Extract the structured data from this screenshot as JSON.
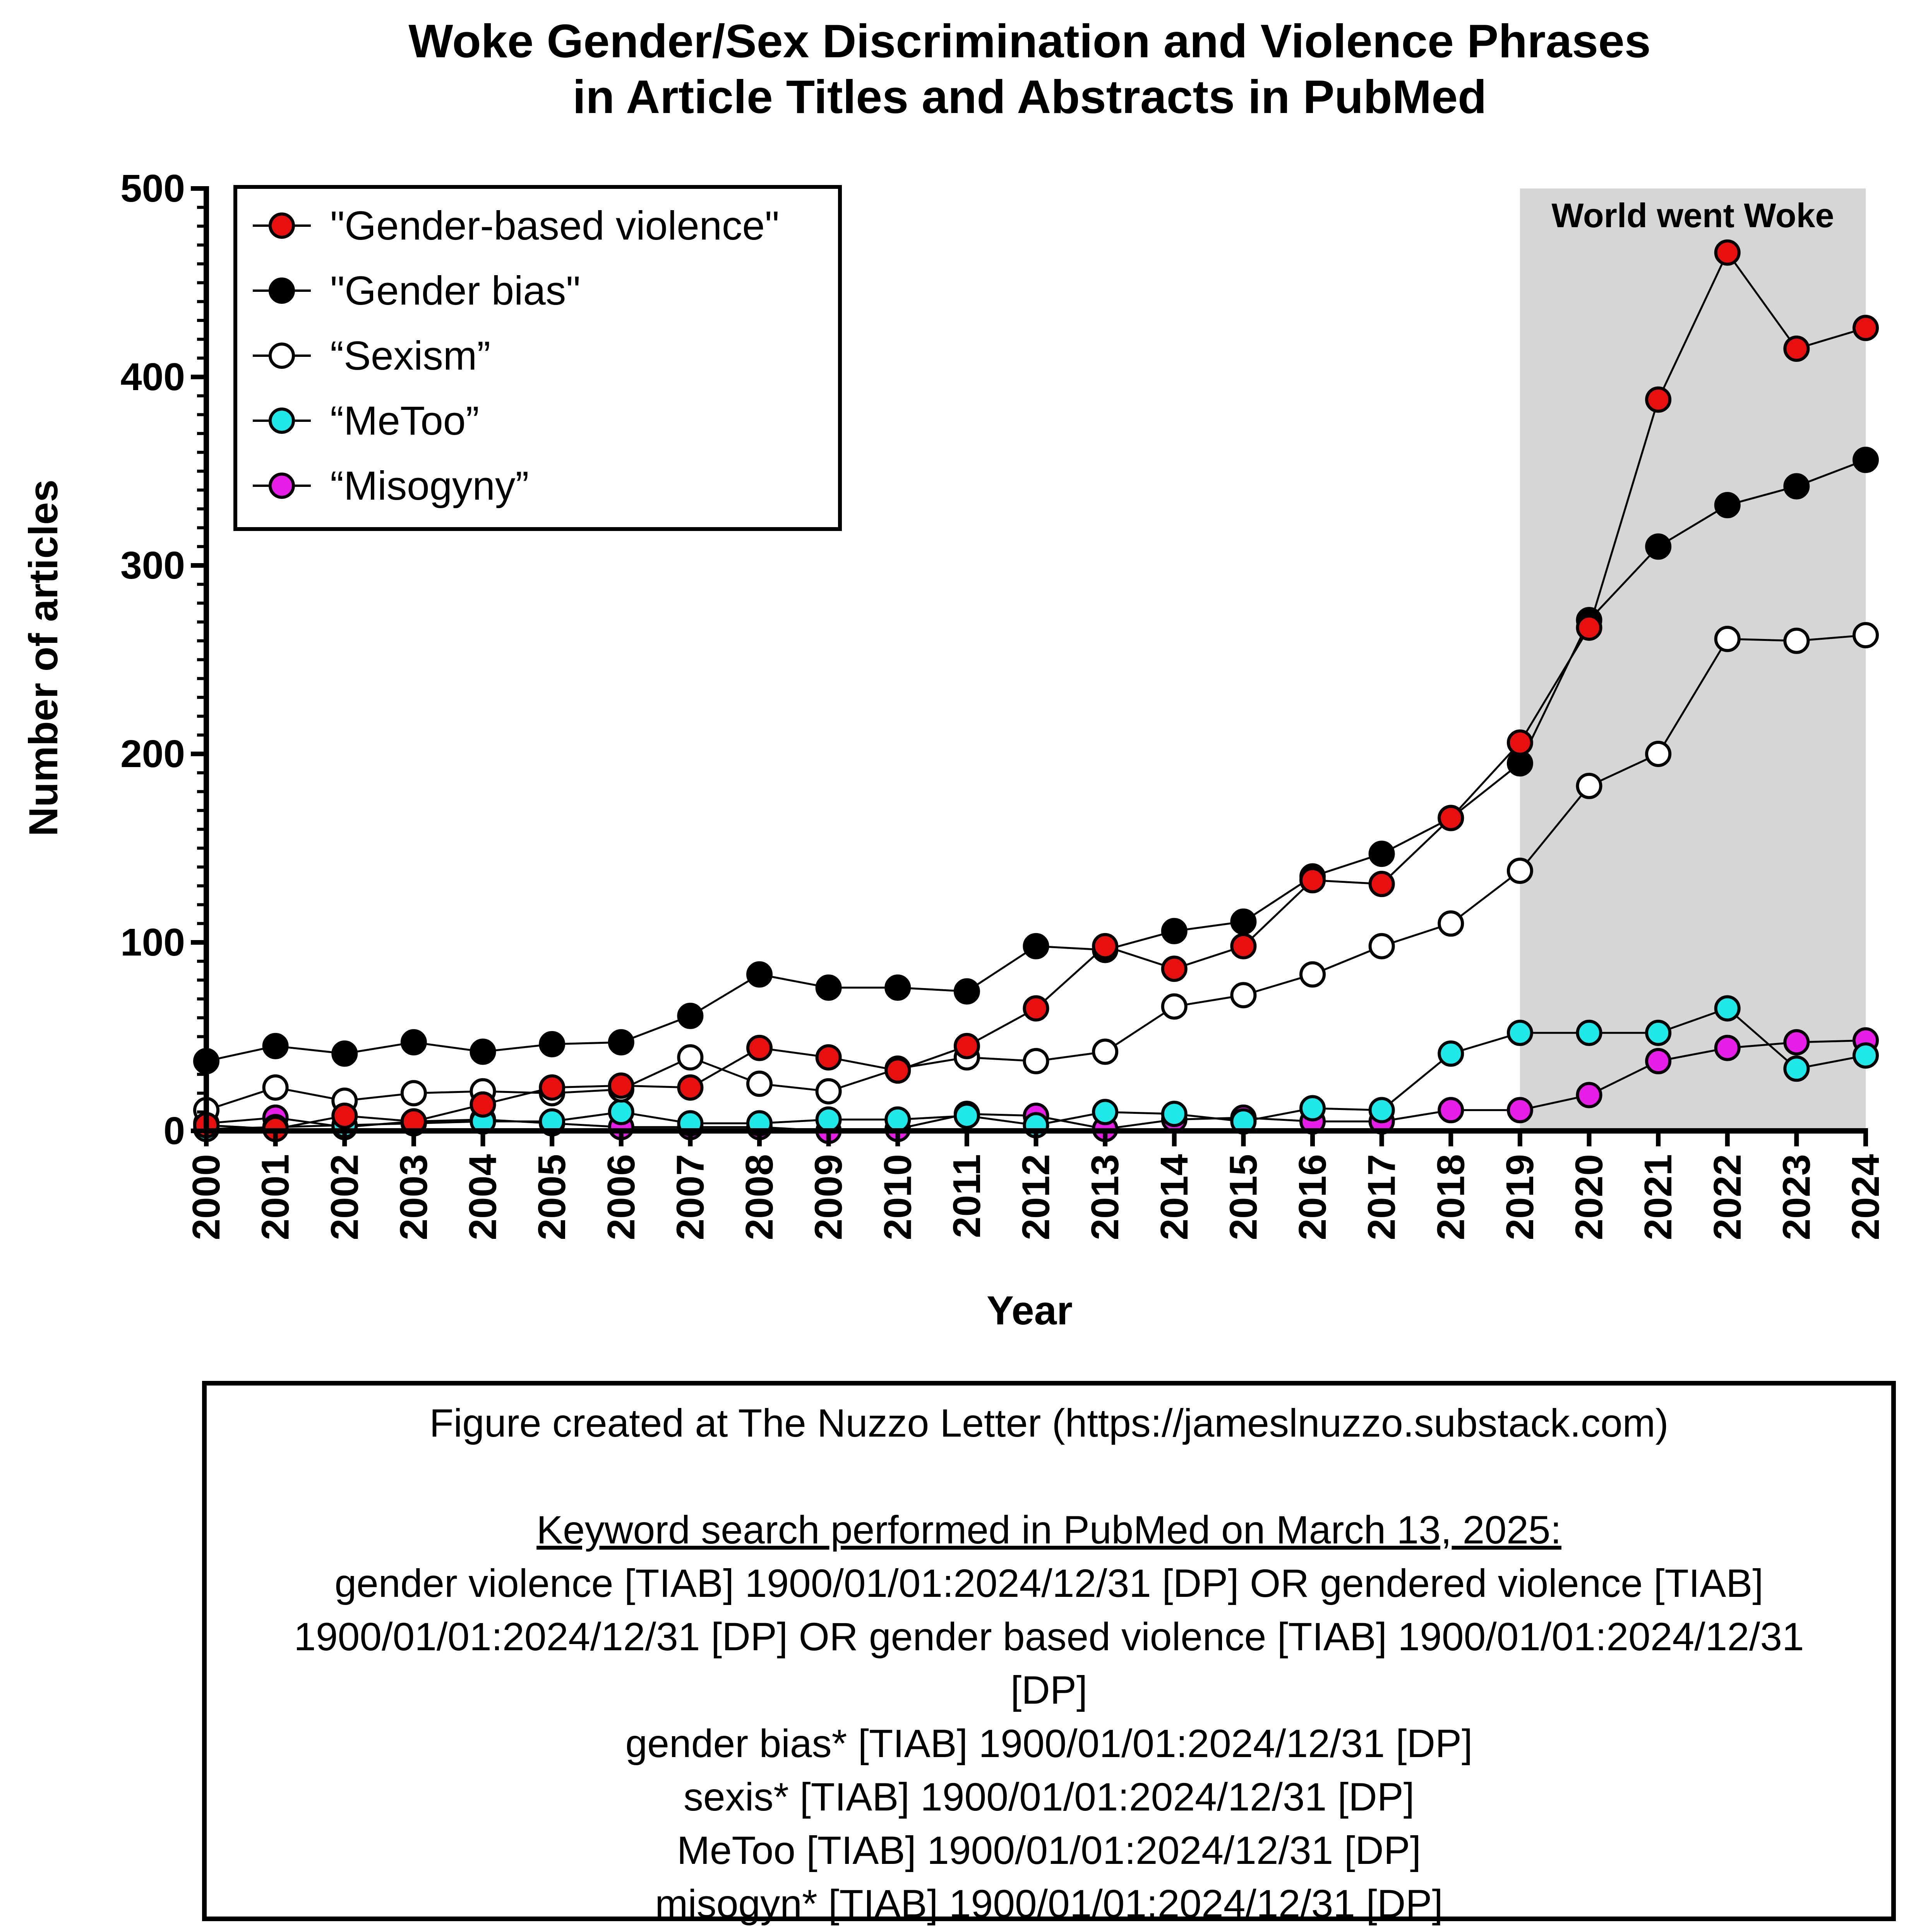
{
  "chart_data": {
    "type": "line",
    "title": [
      "Woke Gender/Sex Discrimination and Violence Phrases",
      "in Article Titles and Abstracts in PubMed"
    ],
    "xlabel": "Year",
    "ylabel": "Number of articles",
    "ylim": [
      0,
      500
    ],
    "yticks": [
      0,
      100,
      200,
      300,
      400,
      500
    ],
    "x": [
      2000,
      2001,
      2002,
      2003,
      2004,
      2005,
      2006,
      2007,
      2008,
      2009,
      2010,
      2011,
      2012,
      2013,
      2014,
      2015,
      2016,
      2017,
      2018,
      2019,
      2020,
      2021,
      2022,
      2023,
      2024
    ],
    "x_labels": [
      "2000",
      "2001",
      "2002",
      "2003",
      "2004",
      "2005",
      "2006",
      "2007",
      "2008",
      "2009",
      "2010",
      "2011",
      "2012",
      "2013",
      "2014",
      "2015",
      "2016",
      "2017",
      "2018",
      "2019",
      "2020",
      "2021",
      "2022",
      "2023",
      "2024"
    ],
    "shaded_region": {
      "x_start": 2019,
      "x_end": 2024,
      "label": "World went Woke",
      "color": "#d6d6d6"
    },
    "legend_position": "top-left",
    "series": [
      {
        "name": "\"Gender-based violence\"",
        "color": "#e8100f",
        "values": [
          3,
          1,
          8,
          5,
          14,
          23,
          24,
          23,
          44,
          39,
          32,
          45,
          65,
          98,
          86,
          98,
          133,
          131,
          166,
          206,
          267,
          388,
          466,
          415,
          426
        ]
      },
      {
        "name": "\"Gender bias\"",
        "color": "#000000",
        "values": [
          37,
          45,
          41,
          47,
          42,
          46,
          47,
          61,
          83,
          76,
          76,
          74,
          98,
          96,
          106,
          111,
          135,
          147,
          166,
          195,
          271,
          310,
          332,
          342,
          356
        ]
      },
      {
        "name": "“Sexism”",
        "color": "#ffffff",
        "values": [
          11,
          23,
          16,
          20,
          21,
          20,
          22,
          39,
          25,
          21,
          33,
          39,
          37,
          42,
          66,
          72,
          83,
          98,
          110,
          138,
          183,
          200,
          261,
          260,
          263
        ]
      },
      {
        "name": "“MeToo”",
        "color": "#1ee8e8",
        "values": [
          1,
          2,
          3,
          4,
          5,
          5,
          10,
          4,
          4,
          6,
          6,
          8,
          3,
          10,
          9,
          5,
          12,
          11,
          41,
          52,
          52,
          52,
          65,
          33,
          40
        ]
      },
      {
        "name": "“Misogyny”",
        "color": "#e81ee8",
        "values": [
          4,
          7,
          2,
          5,
          6,
          4,
          2,
          2,
          2,
          0,
          1,
          9,
          8,
          1,
          6,
          7,
          5,
          5,
          11,
          11,
          19,
          37,
          44,
          47,
          48
        ]
      }
    ]
  },
  "note": {
    "credit": "Figure created at The Nuzzo Letter (https://jameslnuzzo.substack.com)",
    "heading": "Keyword search performed in PubMed on March 13, 2025:",
    "lines": [
      "gender violence [TIAB] 1900/01/01:2024/12/31 [DP] OR gendered violence [TIAB]",
      "1900/01/01:2024/12/31 [DP] OR gender based violence [TIAB] 1900/01/01:2024/12/31",
      "[DP]",
      "gender bias* [TIAB] 1900/01/01:2024/12/31 [DP]",
      "sexis* [TIAB] 1900/01/01:2024/12/31 [DP]",
      "MeToo [TIAB] 1900/01/01:2024/12/31 [DP]",
      "misogyn* [TIAB] 1900/01/01:2024/12/31 [DP]"
    ]
  }
}
